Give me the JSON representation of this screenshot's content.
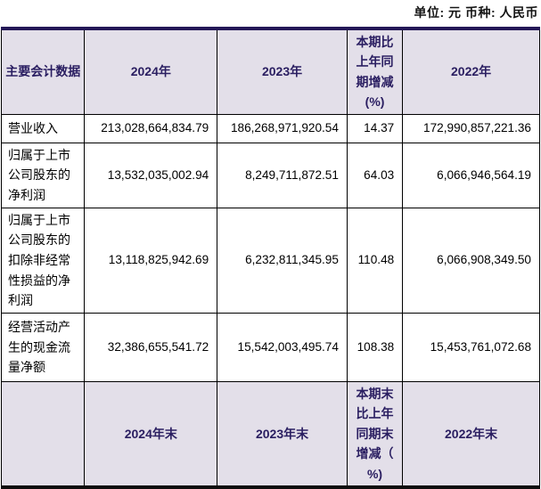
{
  "caption": "单位: 元  币种: 人民币",
  "colors": {
    "top_bar": "#241857",
    "bottom_bar": "#0d0d0d",
    "header_bg": "#e3dfe9",
    "header_text": "#2a1e61",
    "body_text": "#000000",
    "grid_line": "#000000"
  },
  "table": {
    "header": {
      "col1": "主要会计数据",
      "col2": "2024年",
      "col3": "2023年",
      "col4": "本期比\n上年同\n期增减\n(%)",
      "col5": "2022年"
    },
    "rows": [
      {
        "label": "营业收入",
        "values": [
          "213,028,664,834.79",
          "186,268,971,920.54",
          "14.37",
          "172,990,857,221.36"
        ]
      },
      {
        "label": "归属于上市公司股东的净利润",
        "values": [
          "13,532,035,002.94",
          "8,249,711,872.51",
          "64.03",
          "6,066,946,564.19"
        ]
      },
      {
        "label": "归属于上市公司股东的扣除非经常性损益的净利润",
        "values": [
          "13,118,825,942.69",
          "6,232,811,345.95",
          "110.48",
          "6,066,908,349.50"
        ]
      },
      {
        "label": "经营活动产生的现金流量净额",
        "values": [
          "32,386,655,541.72",
          "15,542,003,495.74",
          "108.38",
          "15,453,761,072.68"
        ]
      }
    ],
    "footer_header": {
      "col1": "",
      "col2": "2024年末",
      "col3": "2023年末",
      "col4": "本期末\n比上年\n同期末\n增减（\n%)",
      "col5": "2022年末"
    }
  }
}
